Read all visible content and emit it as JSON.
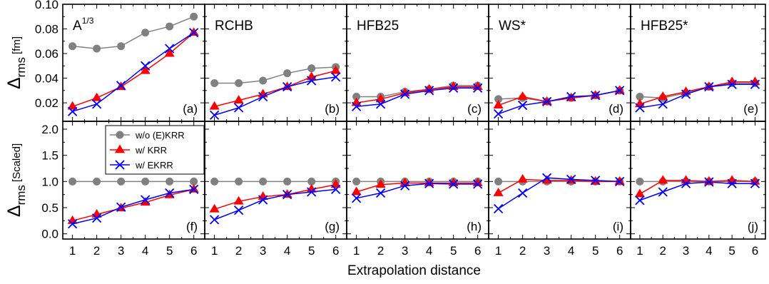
{
  "chart_data": {
    "type": "line",
    "xlabel": "Extrapolation distance",
    "x": [
      1,
      2,
      3,
      4,
      5,
      6
    ],
    "rows": [
      {
        "ylabel_symbol": "Δ",
        "ylabel_sub": "rms",
        "ylabel_unit": "[fm]",
        "ylim": [
          0.005,
          0.1
        ],
        "yticks": [
          0.02,
          0.04,
          0.06,
          0.08,
          0.1
        ],
        "ytick_labels": [
          "0.02",
          "0.04",
          "0.06",
          "0.08",
          "0.10"
        ]
      },
      {
        "ylabel_symbol": "Δ",
        "ylabel_sub": "rms",
        "ylabel_unit": "[Scaled]",
        "ylim": [
          -0.1,
          2.15
        ],
        "yticks": [
          0.0,
          0.5,
          1.0,
          1.5,
          2.0
        ],
        "ytick_labels": [
          "0.0",
          "0.5",
          "1.0",
          "1.5",
          "2.0"
        ]
      }
    ],
    "series_styles": [
      {
        "key": "woKRR",
        "name": "w/o (E)KRR",
        "color": "#808080",
        "marker": "circle"
      },
      {
        "key": "KRR",
        "name": "w/ KRR",
        "color": "#ff0000",
        "marker": "triangle"
      },
      {
        "key": "EKRR",
        "name": "w/ EKRR",
        "color": "#0000ff",
        "marker": "cross"
      }
    ],
    "panels": [
      {
        "row": 0,
        "col": 0,
        "title": "A",
        "title_sup": "1/3",
        "letter": "(a)",
        "series": {
          "woKRR": [
            0.066,
            0.064,
            0.066,
            0.077,
            0.082,
            0.09
          ],
          "KRR": [
            0.017,
            0.024,
            0.033,
            0.046,
            0.06,
            0.077
          ],
          "EKRR": [
            0.013,
            0.019,
            0.034,
            0.05,
            0.064,
            0.077
          ]
        }
      },
      {
        "row": 0,
        "col": 1,
        "title": "RCHB",
        "title_sup": "",
        "letter": "(b)",
        "series": {
          "woKRR": [
            0.036,
            0.036,
            0.038,
            0.044,
            0.048,
            0.049
          ],
          "KRR": [
            0.017,
            0.022,
            0.027,
            0.033,
            0.041,
            0.046
          ],
          "EKRR": [
            0.01,
            0.016,
            0.025,
            0.033,
            0.038,
            0.041
          ]
        }
      },
      {
        "row": 0,
        "col": 2,
        "title": "HFB25",
        "title_sup": "",
        "letter": "(c)",
        "series": {
          "woKRR": [
            0.025,
            0.025,
            0.029,
            0.031,
            0.034,
            0.034
          ],
          "KRR": [
            0.02,
            0.023,
            0.028,
            0.031,
            0.033,
            0.033
          ],
          "EKRR": [
            0.017,
            0.019,
            0.027,
            0.03,
            0.032,
            0.032
          ]
        }
      },
      {
        "row": 0,
        "col": 3,
        "title": "WS*",
        "title_sup": "",
        "letter": "(d)",
        "series": {
          "woKRR": [
            0.023,
            0.024,
            0.021,
            0.024,
            0.026,
            0.03
          ],
          "KRR": [
            0.018,
            0.025,
            0.021,
            0.024,
            0.026,
            0.03
          ],
          "EKRR": [
            0.011,
            0.018,
            0.021,
            0.025,
            0.026,
            0.03
          ]
        }
      },
      {
        "row": 0,
        "col": 4,
        "title": "HFB25*",
        "title_sup": "",
        "letter": "(e)",
        "series": {
          "woKRR": [
            0.025,
            0.024,
            0.028,
            0.033,
            0.036,
            0.036
          ],
          "KRR": [
            0.019,
            0.025,
            0.029,
            0.033,
            0.037,
            0.037
          ],
          "EKRR": [
            0.016,
            0.019,
            0.027,
            0.033,
            0.035,
            0.035
          ]
        }
      },
      {
        "row": 1,
        "col": 0,
        "title": "",
        "title_sup": "",
        "letter": "(f)",
        "series": {
          "woKRR": [
            1.0,
            1.0,
            1.0,
            1.0,
            1.0,
            1.0
          ],
          "KRR": [
            0.25,
            0.37,
            0.49,
            0.6,
            0.74,
            0.85
          ],
          "EKRR": [
            0.19,
            0.3,
            0.51,
            0.65,
            0.78,
            0.85
          ]
        }
      },
      {
        "row": 1,
        "col": 1,
        "title": "",
        "title_sup": "",
        "letter": "(g)",
        "series": {
          "woKRR": [
            1.0,
            1.0,
            1.0,
            1.0,
            1.0,
            1.0
          ],
          "KRR": [
            0.47,
            0.62,
            0.71,
            0.75,
            0.85,
            0.94
          ],
          "EKRR": [
            0.27,
            0.45,
            0.65,
            0.75,
            0.8,
            0.85
          ]
        }
      },
      {
        "row": 1,
        "col": 2,
        "title": "",
        "title_sup": "",
        "letter": "(h)",
        "series": {
          "woKRR": [
            1.0,
            1.0,
            1.0,
            1.0,
            1.0,
            1.0
          ],
          "KRR": [
            0.8,
            0.94,
            0.97,
            0.97,
            0.97,
            0.97
          ],
          "EKRR": [
            0.68,
            0.78,
            0.92,
            0.96,
            0.95,
            0.95
          ]
        }
      },
      {
        "row": 1,
        "col": 3,
        "title": "",
        "title_sup": "",
        "letter": "(i)",
        "series": {
          "woKRR": [
            1.0,
            1.0,
            1.0,
            1.0,
            1.0,
            1.0
          ],
          "KRR": [
            0.78,
            1.04,
            1.02,
            1.02,
            1.0,
            1.0
          ],
          "EKRR": [
            0.48,
            0.78,
            1.07,
            1.04,
            1.02,
            1.0
          ]
        }
      },
      {
        "row": 1,
        "col": 4,
        "title": "",
        "title_sup": "",
        "letter": "(j)",
        "series": {
          "woKRR": [
            1.0,
            1.0,
            1.0,
            1.0,
            1.0,
            1.0
          ],
          "KRR": [
            0.76,
            1.02,
            1.02,
            1.0,
            1.02,
            1.0
          ],
          "EKRR": [
            0.64,
            0.8,
            0.96,
            0.99,
            0.96,
            0.96
          ]
        }
      }
    ],
    "legend_panel": 5,
    "legend_placement": "top-left"
  }
}
